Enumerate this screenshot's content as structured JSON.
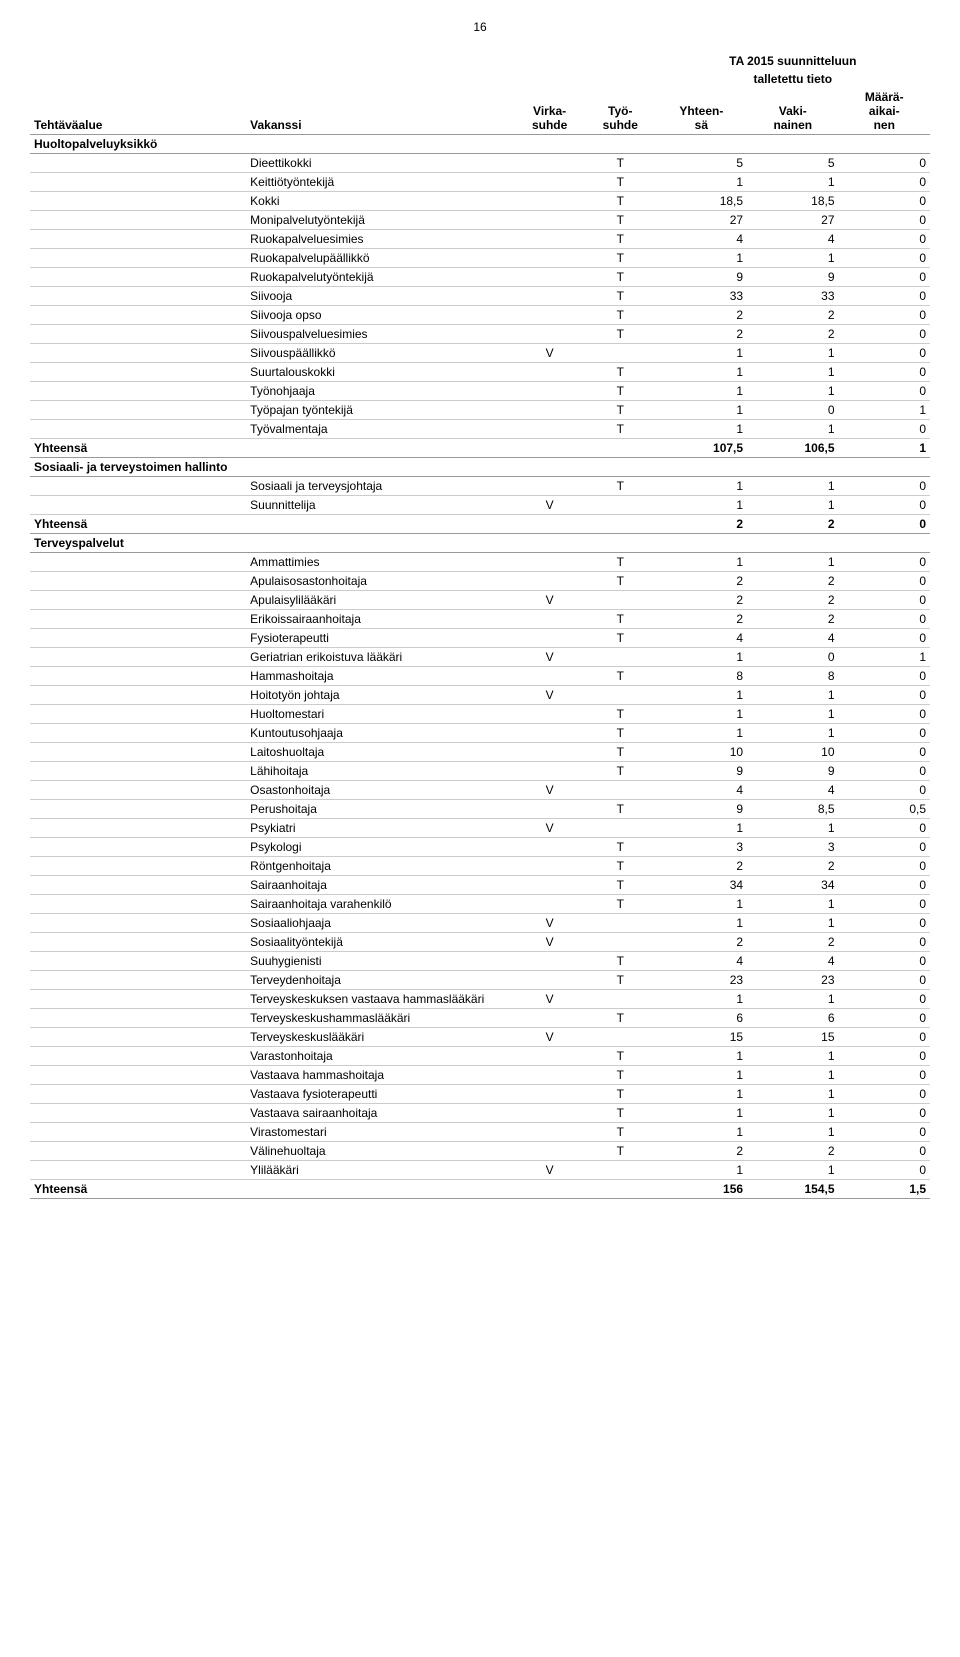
{
  "page_number": "16",
  "header": {
    "super1": "TA 2015 suunnitteluun",
    "super2": "talletettu tieto",
    "col_tehtava": "Tehtäväalue",
    "col_vakanssi": "Vakanssi",
    "col_virka": "Virka-\nsuhde",
    "col_tyo": "Työ-\nsuhde",
    "col_yht": "Yhteen-\nsä",
    "col_vaki": "Vaki-\nnainen",
    "col_maara": "Määrä-\naikai-\nnen"
  },
  "sections": [
    {
      "title": "Huoltopalveluyksikkö",
      "rows": [
        {
          "vakanssi": "Dieettikokki",
          "virka": "",
          "tyo": "T",
          "yht": "5",
          "vaki": "5",
          "maara": "0"
        },
        {
          "vakanssi": "Keittiötyöntekijä",
          "virka": "",
          "tyo": "T",
          "yht": "1",
          "vaki": "1",
          "maara": "0"
        },
        {
          "vakanssi": "Kokki",
          "virka": "",
          "tyo": "T",
          "yht": "18,5",
          "vaki": "18,5",
          "maara": "0"
        },
        {
          "vakanssi": "Monipalvelutyöntekijä",
          "virka": "",
          "tyo": "T",
          "yht": "27",
          "vaki": "27",
          "maara": "0"
        },
        {
          "vakanssi": "Ruokapalveluesimies",
          "virka": "",
          "tyo": "T",
          "yht": "4",
          "vaki": "4",
          "maara": "0"
        },
        {
          "vakanssi": "Ruokapalvelupäällikkö",
          "virka": "",
          "tyo": "T",
          "yht": "1",
          "vaki": "1",
          "maara": "0"
        },
        {
          "vakanssi": "Ruokapalvelutyöntekijä",
          "virka": "",
          "tyo": "T",
          "yht": "9",
          "vaki": "9",
          "maara": "0"
        },
        {
          "vakanssi": "Siivooja",
          "virka": "",
          "tyo": "T",
          "yht": "33",
          "vaki": "33",
          "maara": "0"
        },
        {
          "vakanssi": "Siivooja opso",
          "virka": "",
          "tyo": "T",
          "yht": "2",
          "vaki": "2",
          "maara": "0"
        },
        {
          "vakanssi": "Siivouspalveluesimies",
          "virka": "",
          "tyo": "T",
          "yht": "2",
          "vaki": "2",
          "maara": "0"
        },
        {
          "vakanssi": "Siivouspäällikkö",
          "virka": "V",
          "tyo": "",
          "yht": "1",
          "vaki": "1",
          "maara": "0"
        },
        {
          "vakanssi": "Suurtalouskokki",
          "virka": "",
          "tyo": "T",
          "yht": "1",
          "vaki": "1",
          "maara": "0"
        },
        {
          "vakanssi": "Työnohjaaja",
          "virka": "",
          "tyo": "T",
          "yht": "1",
          "vaki": "1",
          "maara": "0"
        },
        {
          "vakanssi": "Työpajan työntekijä",
          "virka": "",
          "tyo": "T",
          "yht": "1",
          "vaki": "0",
          "maara": "1"
        },
        {
          "vakanssi": "Työvalmentaja",
          "virka": "",
          "tyo": "T",
          "yht": "1",
          "vaki": "1",
          "maara": "0"
        }
      ],
      "total": {
        "label": "Yhteensä",
        "yht": "107,5",
        "vaki": "106,5",
        "maara": "1"
      }
    },
    {
      "title": "Sosiaali- ja terveystoimen hallinto",
      "rows": [
        {
          "vakanssi": "Sosiaali ja terveysjohtaja",
          "virka": "",
          "tyo": "T",
          "yht": "1",
          "vaki": "1",
          "maara": "0"
        },
        {
          "vakanssi": "Suunnittelija",
          "virka": "V",
          "tyo": "",
          "yht": "1",
          "vaki": "1",
          "maara": "0"
        }
      ],
      "total": {
        "label": "Yhteensä",
        "yht": "2",
        "vaki": "2",
        "maara": "0"
      }
    },
    {
      "title": "Terveyspalvelut",
      "rows": [
        {
          "vakanssi": "Ammattimies",
          "virka": "",
          "tyo": "T",
          "yht": "1",
          "vaki": "1",
          "maara": "0"
        },
        {
          "vakanssi": "Apulaisosastonhoitaja",
          "virka": "",
          "tyo": "T",
          "yht": "2",
          "vaki": "2",
          "maara": "0"
        },
        {
          "vakanssi": "Apulaisylilääkäri",
          "virka": "V",
          "tyo": "",
          "yht": "2",
          "vaki": "2",
          "maara": "0"
        },
        {
          "vakanssi": "Erikoissairaanhoitaja",
          "virka": "",
          "tyo": "T",
          "yht": "2",
          "vaki": "2",
          "maara": "0"
        },
        {
          "vakanssi": "Fysioterapeutti",
          "virka": "",
          "tyo": "T",
          "yht": "4",
          "vaki": "4",
          "maara": "0"
        },
        {
          "vakanssi": "Geriatrian erikoistuva lääkäri",
          "virka": "V",
          "tyo": "",
          "yht": "1",
          "vaki": "0",
          "maara": "1"
        },
        {
          "vakanssi": "Hammashoitaja",
          "virka": "",
          "tyo": "T",
          "yht": "8",
          "vaki": "8",
          "maara": "0"
        },
        {
          "vakanssi": "Hoitotyön johtaja",
          "virka": "V",
          "tyo": "",
          "yht": "1",
          "vaki": "1",
          "maara": "0"
        },
        {
          "vakanssi": "Huoltomestari",
          "virka": "",
          "tyo": "T",
          "yht": "1",
          "vaki": "1",
          "maara": "0"
        },
        {
          "vakanssi": "Kuntoutusohjaaja",
          "virka": "",
          "tyo": "T",
          "yht": "1",
          "vaki": "1",
          "maara": "0"
        },
        {
          "vakanssi": "Laitoshuoltaja",
          "virka": "",
          "tyo": "T",
          "yht": "10",
          "vaki": "10",
          "maara": "0"
        },
        {
          "vakanssi": "Lähihoitaja",
          "virka": "",
          "tyo": "T",
          "yht": "9",
          "vaki": "9",
          "maara": "0"
        },
        {
          "vakanssi": "Osastonhoitaja",
          "virka": "V",
          "tyo": "",
          "yht": "4",
          "vaki": "4",
          "maara": "0"
        },
        {
          "vakanssi": "Perushoitaja",
          "virka": "",
          "tyo": "T",
          "yht": "9",
          "vaki": "8,5",
          "maara": "0,5"
        },
        {
          "vakanssi": "Psykiatri",
          "virka": "V",
          "tyo": "",
          "yht": "1",
          "vaki": "1",
          "maara": "0"
        },
        {
          "vakanssi": "Psykologi",
          "virka": "",
          "tyo": "T",
          "yht": "3",
          "vaki": "3",
          "maara": "0"
        },
        {
          "vakanssi": "Röntgenhoitaja",
          "virka": "",
          "tyo": "T",
          "yht": "2",
          "vaki": "2",
          "maara": "0"
        },
        {
          "vakanssi": "Sairaanhoitaja",
          "virka": "",
          "tyo": "T",
          "yht": "34",
          "vaki": "34",
          "maara": "0"
        },
        {
          "vakanssi": "Sairaanhoitaja varahenkilö",
          "virka": "",
          "tyo": "T",
          "yht": "1",
          "vaki": "1",
          "maara": "0"
        },
        {
          "vakanssi": "Sosiaaliohjaaja",
          "virka": "V",
          "tyo": "",
          "yht": "1",
          "vaki": "1",
          "maara": "0"
        },
        {
          "vakanssi": "Sosiaalityöntekijä",
          "virka": "V",
          "tyo": "",
          "yht": "2",
          "vaki": "2",
          "maara": "0"
        },
        {
          "vakanssi": "Suuhygienisti",
          "virka": "",
          "tyo": "T",
          "yht": "4",
          "vaki": "4",
          "maara": "0"
        },
        {
          "vakanssi": "Terveydenhoitaja",
          "virka": "",
          "tyo": "T",
          "yht": "23",
          "vaki": "23",
          "maara": "0"
        },
        {
          "vakanssi": "Terveyskeskuksen vastaava hammaslääkäri",
          "virka": "V",
          "tyo": "",
          "yht": "1",
          "vaki": "1",
          "maara": "0"
        },
        {
          "vakanssi": "Terveyskeskushammaslääkäri",
          "virka": "",
          "tyo": "T",
          "yht": "6",
          "vaki": "6",
          "maara": "0"
        },
        {
          "vakanssi": "Terveyskeskuslääkäri",
          "virka": "V",
          "tyo": "",
          "yht": "15",
          "vaki": "15",
          "maara": "0"
        },
        {
          "vakanssi": "Varastonhoitaja",
          "virka": "",
          "tyo": "T",
          "yht": "1",
          "vaki": "1",
          "maara": "0"
        },
        {
          "vakanssi": "Vastaava hammashoitaja",
          "virka": "",
          "tyo": "T",
          "yht": "1",
          "vaki": "1",
          "maara": "0"
        },
        {
          "vakanssi": "Vastaava fysioterapeutti",
          "virka": "",
          "tyo": "T",
          "yht": "1",
          "vaki": "1",
          "maara": "0"
        },
        {
          "vakanssi": "Vastaava sairaanhoitaja",
          "virka": "",
          "tyo": "T",
          "yht": "1",
          "vaki": "1",
          "maara": "0"
        },
        {
          "vakanssi": "Virastomestari",
          "virka": "",
          "tyo": "T",
          "yht": "1",
          "vaki": "1",
          "maara": "0"
        },
        {
          "vakanssi": "Välinehuoltaja",
          "virka": "",
          "tyo": "T",
          "yht": "2",
          "vaki": "2",
          "maara": "0"
        },
        {
          "vakanssi": "Ylilääkäri",
          "virka": "V",
          "tyo": "",
          "yht": "1",
          "vaki": "1",
          "maara": "0"
        }
      ],
      "total": {
        "label": "Yhteensä",
        "yht": "156",
        "vaki": "154,5",
        "maara": "1,5"
      }
    }
  ]
}
